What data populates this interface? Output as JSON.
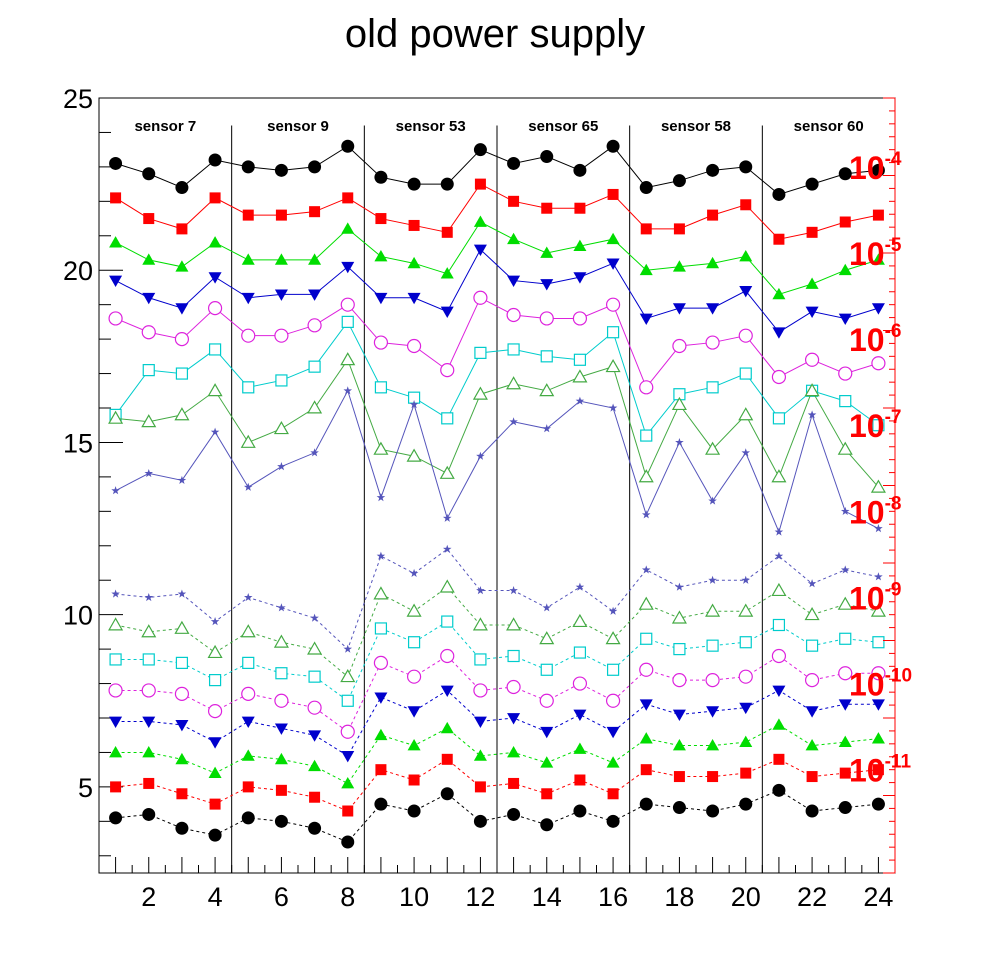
{
  "chart_data": {
    "type": "line",
    "title": "old power supply",
    "xlabel": "",
    "ylabel": "",
    "xlim": [
      0.5,
      24.5
    ],
    "ylim": [
      2.5,
      25
    ],
    "x": [
      1,
      2,
      3,
      4,
      5,
      6,
      7,
      8,
      9,
      10,
      11,
      12,
      13,
      14,
      15,
      16,
      17,
      18,
      19,
      20,
      21,
      22,
      23,
      24
    ],
    "x_ticks": [
      2,
      4,
      6,
      8,
      10,
      12,
      14,
      16,
      18,
      20,
      22,
      24
    ],
    "y_ticks": [
      5,
      10,
      15,
      20,
      25
    ],
    "grid": false,
    "sensors": [
      "sensor 7",
      "sensor 9",
      "sensor 53",
      "sensor 65",
      "sensor 58",
      "sensor 60"
    ],
    "right_axis": {
      "color": "#ff0000",
      "scale": "log",
      "labels": [
        {
          "base": "10",
          "exp": "-4",
          "value": 23
        },
        {
          "base": "10",
          "exp": "-5",
          "value": 20.5
        },
        {
          "base": "10",
          "exp": "-6",
          "value": 18
        },
        {
          "base": "10",
          "exp": "-7",
          "value": 15.5
        },
        {
          "base": "10",
          "exp": "-8",
          "value": 13
        },
        {
          "base": "10",
          "exp": "-9",
          "value": 10.5
        },
        {
          "base": "10",
          "exp": "-10",
          "value": 8
        },
        {
          "base": "10",
          "exp": "-11",
          "value": 5.5
        }
      ]
    },
    "series": [
      {
        "color": "#000000",
        "marker": "circle",
        "dash": false,
        "values": [
          23.1,
          22.8,
          22.4,
          23.2,
          23.0,
          22.9,
          23.0,
          23.6,
          22.7,
          22.5,
          22.5,
          23.5,
          23.1,
          23.3,
          22.9,
          23.6,
          22.4,
          22.6,
          22.9,
          23.0,
          22.2,
          22.5,
          22.8,
          22.9
        ]
      },
      {
        "color": "#ff0000",
        "marker": "square",
        "dash": false,
        "values": [
          22.1,
          21.5,
          21.2,
          22.1,
          21.6,
          21.6,
          21.7,
          22.1,
          21.5,
          21.3,
          21.1,
          22.5,
          22.0,
          21.8,
          21.8,
          22.2,
          21.2,
          21.2,
          21.6,
          21.9,
          20.9,
          21.1,
          21.4,
          21.6
        ]
      },
      {
        "color": "#00dd00",
        "marker": "triangle-up",
        "dash": false,
        "values": [
          20.8,
          20.3,
          20.1,
          20.8,
          20.3,
          20.3,
          20.3,
          21.2,
          20.4,
          20.2,
          19.9,
          21.4,
          20.9,
          20.5,
          20.7,
          20.9,
          20.0,
          20.1,
          20.2,
          20.4,
          19.3,
          19.6,
          20.0,
          20.3
        ]
      },
      {
        "color": "#0000cc",
        "marker": "triangle-down",
        "dash": false,
        "values": [
          19.7,
          19.2,
          18.9,
          19.8,
          19.2,
          19.3,
          19.3,
          20.1,
          19.2,
          19.2,
          18.8,
          20.6,
          19.7,
          19.6,
          19.8,
          20.2,
          18.6,
          18.9,
          18.9,
          19.4,
          18.2,
          18.8,
          18.6,
          18.9
        ]
      },
      {
        "color": "#dd22dd",
        "marker": "circle-open",
        "dash": false,
        "values": [
          18.6,
          18.2,
          18.0,
          18.9,
          18.1,
          18.1,
          18.4,
          19.0,
          17.9,
          17.8,
          17.1,
          19.2,
          18.7,
          18.6,
          18.6,
          19.0,
          16.6,
          17.8,
          17.9,
          18.1,
          16.9,
          17.4,
          17.0,
          17.3
        ]
      },
      {
        "color": "#00cccc",
        "marker": "square-open",
        "dash": false,
        "values": [
          15.8,
          17.1,
          17.0,
          17.7,
          16.6,
          16.8,
          17.2,
          18.5,
          16.6,
          16.3,
          15.7,
          17.6,
          17.7,
          17.5,
          17.4,
          18.2,
          15.2,
          16.4,
          16.6,
          17.0,
          15.7,
          16.5,
          16.2,
          15.5
        ]
      },
      {
        "color": "#44aa44",
        "marker": "triangle-open",
        "dash": false,
        "values": [
          15.7,
          15.6,
          15.8,
          16.5,
          15.0,
          15.4,
          16.0,
          17.4,
          14.8,
          14.6,
          14.1,
          16.4,
          16.7,
          16.5,
          16.9,
          17.2,
          14.0,
          16.1,
          14.8,
          15.8,
          14.0,
          16.5,
          14.8,
          13.7
        ]
      },
      {
        "color": "#5555bb",
        "marker": "star",
        "dash": false,
        "values": [
          13.6,
          14.1,
          13.9,
          15.3,
          13.7,
          14.3,
          14.7,
          16.5,
          13.4,
          16.1,
          12.8,
          14.6,
          15.6,
          15.4,
          16.2,
          16.0,
          12.9,
          15.0,
          13.3,
          14.7,
          12.4,
          15.8,
          13.0,
          12.5
        ]
      },
      {
        "color": "#5555bb",
        "marker": "star",
        "dash": true,
        "values": [
          10.6,
          10.5,
          10.6,
          9.8,
          10.5,
          10.2,
          9.9,
          9.0,
          11.7,
          11.2,
          11.9,
          10.7,
          10.7,
          10.2,
          10.8,
          10.1,
          11.3,
          10.8,
          11.0,
          11.0,
          11.7,
          10.9,
          11.3,
          11.1
        ]
      },
      {
        "color": "#44aa44",
        "marker": "triangle-open",
        "dash": true,
        "values": [
          9.7,
          9.5,
          9.6,
          8.9,
          9.5,
          9.2,
          9.0,
          8.2,
          10.6,
          10.1,
          10.8,
          9.7,
          9.7,
          9.3,
          9.8,
          9.3,
          10.3,
          9.9,
          10.1,
          10.1,
          10.7,
          10.0,
          10.3,
          10.1
        ]
      },
      {
        "color": "#00cccc",
        "marker": "square-open",
        "dash": true,
        "values": [
          8.7,
          8.7,
          8.6,
          8.1,
          8.6,
          8.3,
          8.2,
          7.5,
          9.6,
          9.2,
          9.8,
          8.7,
          8.8,
          8.4,
          8.9,
          8.4,
          9.3,
          9.0,
          9.1,
          9.2,
          9.7,
          9.1,
          9.3,
          9.2
        ]
      },
      {
        "color": "#dd22dd",
        "marker": "circle-open",
        "dash": true,
        "values": [
          7.8,
          7.8,
          7.7,
          7.2,
          7.7,
          7.5,
          7.3,
          6.6,
          8.6,
          8.2,
          8.8,
          7.8,
          7.9,
          7.5,
          8.0,
          7.5,
          8.4,
          8.1,
          8.1,
          8.2,
          8.8,
          8.1,
          8.3,
          8.3
        ]
      },
      {
        "color": "#0000cc",
        "marker": "triangle-down",
        "dash": true,
        "values": [
          6.9,
          6.9,
          6.8,
          6.3,
          6.9,
          6.7,
          6.5,
          5.9,
          7.6,
          7.2,
          7.8,
          6.9,
          7.0,
          6.6,
          7.1,
          6.6,
          7.4,
          7.1,
          7.2,
          7.3,
          7.8,
          7.2,
          7.4,
          7.4
        ]
      },
      {
        "color": "#00dd00",
        "marker": "triangle-up",
        "dash": true,
        "values": [
          6.0,
          6.0,
          5.8,
          5.4,
          5.9,
          5.8,
          5.6,
          5.1,
          6.5,
          6.2,
          6.7,
          5.9,
          6.0,
          5.7,
          6.1,
          5.7,
          6.4,
          6.2,
          6.2,
          6.3,
          6.8,
          6.2,
          6.3,
          6.4
        ]
      },
      {
        "color": "#ff0000",
        "marker": "square",
        "dash": true,
        "values": [
          5.0,
          5.1,
          4.8,
          4.5,
          5.0,
          4.9,
          4.7,
          4.3,
          5.5,
          5.2,
          5.8,
          5.0,
          5.1,
          4.8,
          5.2,
          4.8,
          5.5,
          5.3,
          5.3,
          5.4,
          5.8,
          5.3,
          5.4,
          5.5
        ]
      },
      {
        "color": "#000000",
        "marker": "circle",
        "dash": true,
        "values": [
          4.1,
          4.2,
          3.8,
          3.6,
          4.1,
          4.0,
          3.8,
          3.4,
          4.5,
          4.3,
          4.8,
          4.0,
          4.2,
          3.9,
          4.3,
          4.0,
          4.5,
          4.4,
          4.3,
          4.5,
          4.9,
          4.3,
          4.4,
          4.5
        ]
      }
    ]
  }
}
